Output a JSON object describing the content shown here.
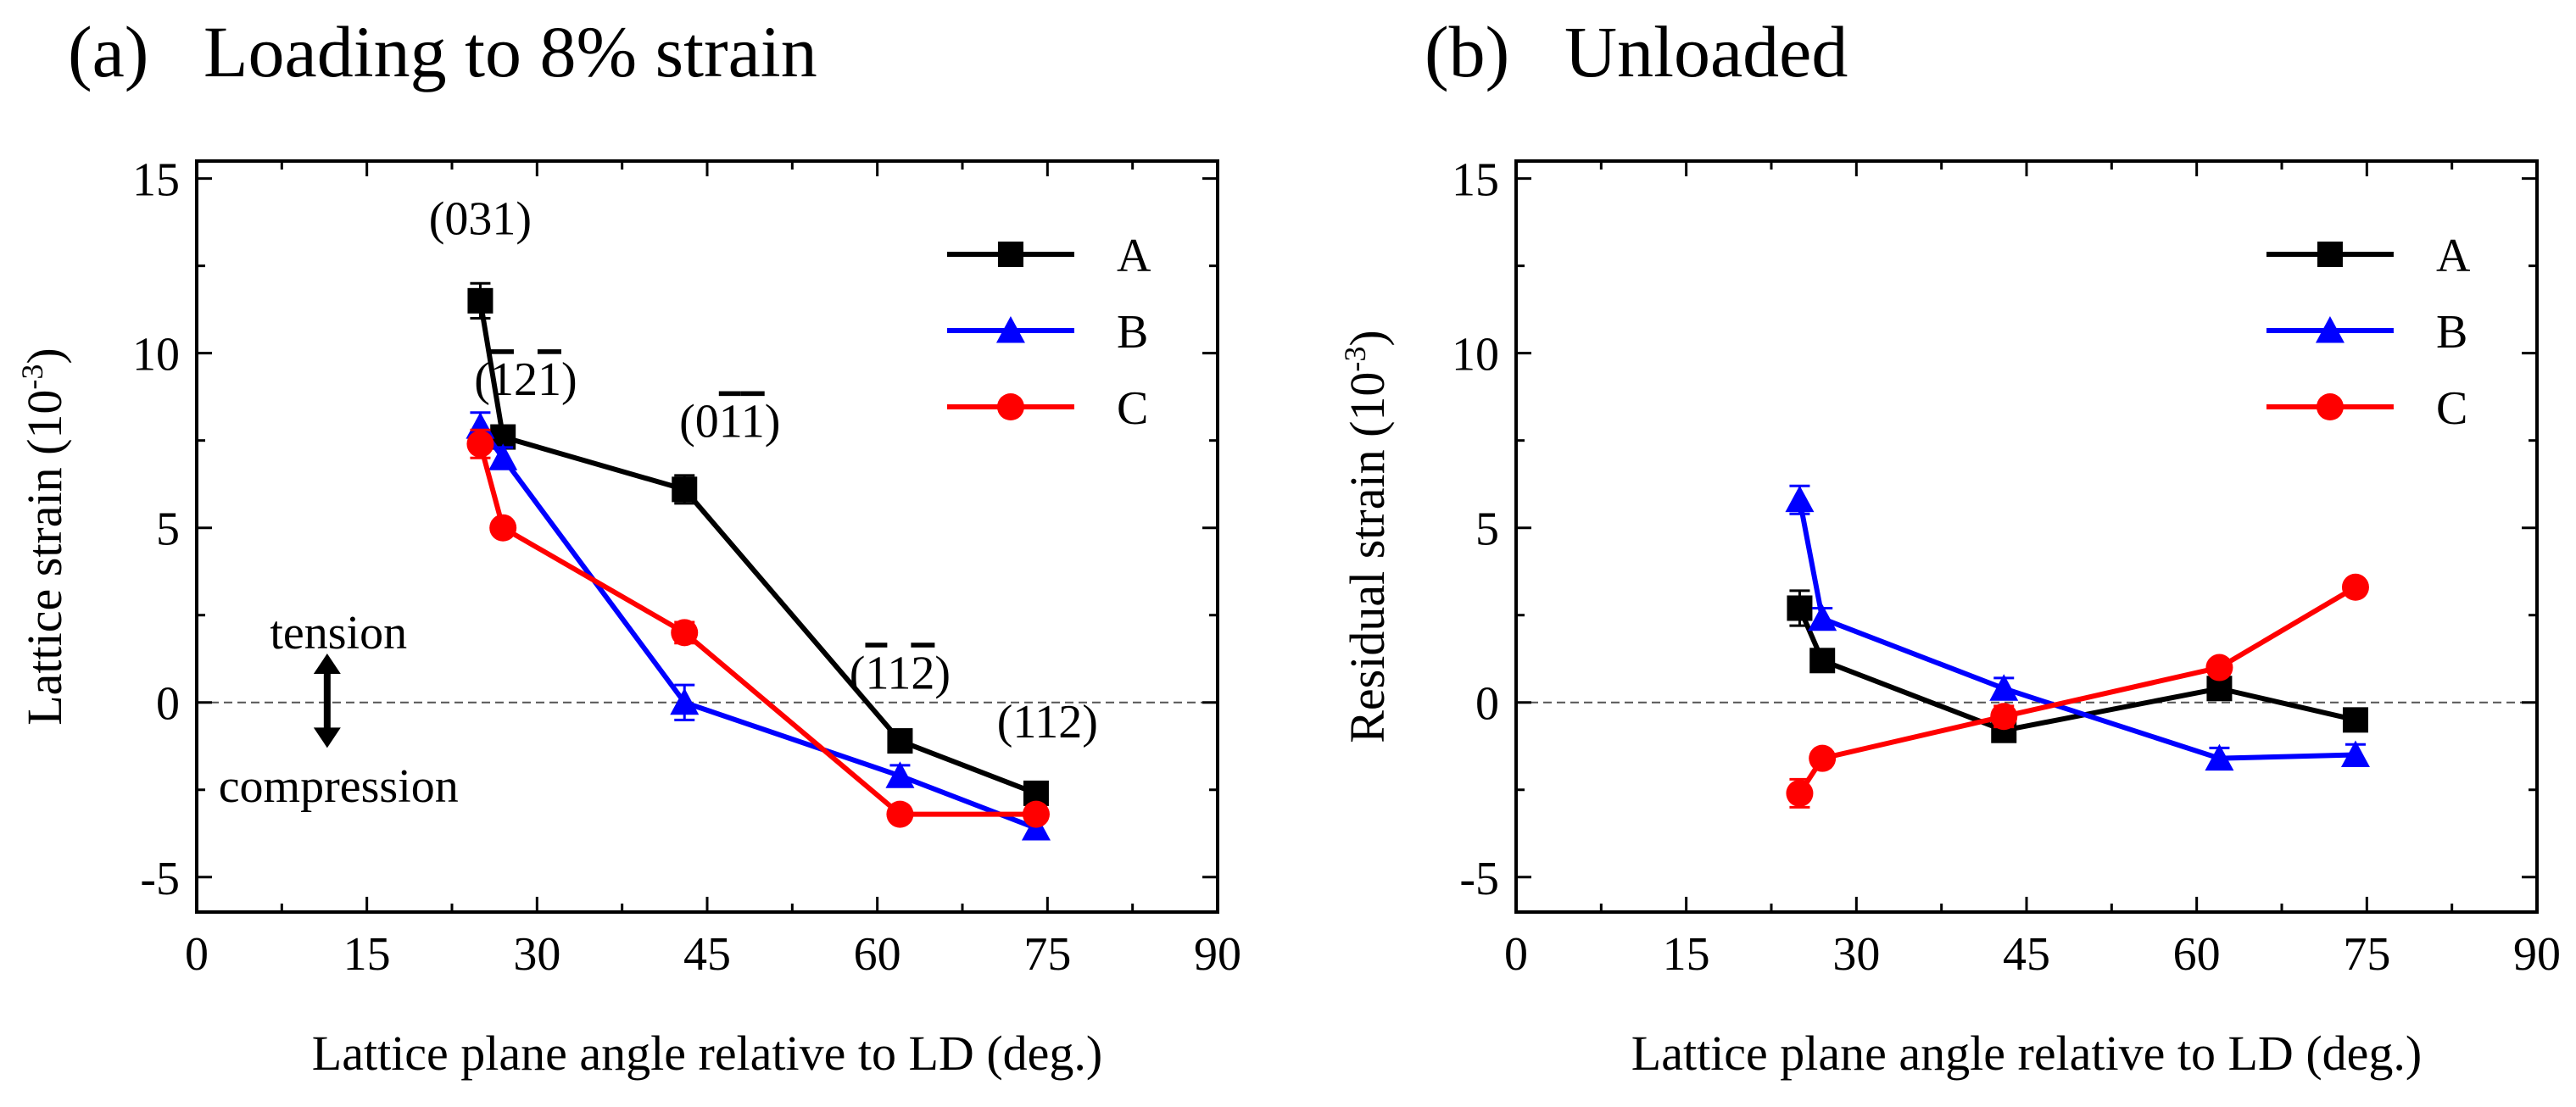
{
  "chart_data": [
    {
      "panel": "a",
      "type": "line",
      "panel_label": "(a)",
      "title": "Loading to 8% strain",
      "xlabel": "Lattice plane angle relative to LD (deg.)",
      "ylabel": "Lattice strain",
      "ylabel_unit": "10",
      "ylabel_unit_exp": "-3",
      "xlim": [
        0,
        90
      ],
      "ylim": [
        -6,
        15.5
      ],
      "xticks": [
        0,
        15,
        30,
        45,
        60,
        75,
        90
      ],
      "yticks": [
        -5,
        0,
        5,
        10,
        15
      ],
      "ytick_labels": [
        "-5",
        "0",
        "5",
        "10",
        "15"
      ],
      "reference_line": 0,
      "legend_position": "top-right",
      "series": [
        {
          "name": "A",
          "marker": "square",
          "color": "#000000",
          "x": [
            25,
            27,
            43,
            62,
            74
          ],
          "y": [
            11.5,
            7.6,
            6.1,
            -1.1,
            -2.6
          ],
          "err": [
            0.5,
            0.3,
            0.4,
            0.3,
            0.3
          ]
        },
        {
          "name": "B",
          "marker": "triangle",
          "color": "#0000ff",
          "x": [
            25,
            27,
            43,
            62,
            74
          ],
          "y": [
            7.9,
            7.0,
            0.0,
            -2.1,
            -3.6
          ],
          "err": [
            0.4,
            0.3,
            0.5,
            0.3,
            0.3
          ]
        },
        {
          "name": "C",
          "marker": "circle",
          "color": "#ff0000",
          "x": [
            25,
            27,
            43,
            62,
            74
          ],
          "y": [
            7.4,
            5.0,
            2.0,
            -3.2,
            -3.2
          ],
          "err": [
            0.4,
            0.2,
            0.3,
            0.2,
            0.2
          ]
        }
      ],
      "annotations": [
        {
          "label": "(031)",
          "at_x": 25,
          "at_y": 13.4
        },
        {
          "label": "(121)",
          "segments": [
            [
              "(",
              false
            ],
            [
              "1",
              true
            ],
            [
              "2",
              false
            ],
            [
              "1",
              true
            ],
            [
              ")",
              false
            ]
          ],
          "at_x": 29,
          "at_y": 8.8
        },
        {
          "label": "(011)",
          "segments": [
            [
              "(0",
              false
            ],
            [
              "1",
              true
            ],
            [
              "1",
              true
            ],
            [
              ")",
              false
            ]
          ],
          "at_x": 47,
          "at_y": 7.6
        },
        {
          "label": "(112)",
          "segments": [
            [
              "(",
              false
            ],
            [
              "1",
              true
            ],
            [
              "1",
              false
            ],
            [
              "2",
              true
            ],
            [
              ")",
              false
            ]
          ],
          "at_x": 62,
          "at_y": 0.4
        },
        {
          "label": "(112)",
          "at_x": 75,
          "at_y": -1.0
        }
      ],
      "arrow_labels": {
        "top": "tension",
        "bottom": "compression"
      }
    },
    {
      "panel": "b",
      "type": "line",
      "panel_label": "(b)",
      "title": "Unloaded",
      "xlabel": "Lattice plane angle relative to LD (deg.)",
      "ylabel": "Residual strain",
      "ylabel_unit": "10",
      "ylabel_unit_exp": "-3",
      "xlim": [
        0,
        90
      ],
      "ylim": [
        -6,
        15.5
      ],
      "xticks": [
        0,
        15,
        30,
        45,
        60,
        75,
        90
      ],
      "yticks": [
        -5,
        0,
        5,
        10,
        15
      ],
      "ytick_labels": [
        "-5",
        "0",
        "5",
        "10",
        "15"
      ],
      "reference_line": 0,
      "legend_position": "top-right",
      "series": [
        {
          "name": "A",
          "marker": "square",
          "color": "#000000",
          "x": [
            25,
            27,
            43,
            62,
            74
          ],
          "y": [
            2.7,
            1.2,
            -0.8,
            0.4,
            -0.5
          ],
          "err": [
            0.5,
            0.3,
            0.3,
            0.3,
            0.2
          ]
        },
        {
          "name": "B",
          "marker": "triangle",
          "color": "#0000ff",
          "x": [
            25,
            27,
            43,
            62,
            74
          ],
          "y": [
            5.8,
            2.4,
            0.4,
            -1.6,
            -1.5
          ],
          "err": [
            0.4,
            0.3,
            0.3,
            0.3,
            0.3
          ]
        },
        {
          "name": "C",
          "marker": "circle",
          "color": "#ff0000",
          "x": [
            25,
            27,
            43,
            62,
            74
          ],
          "y": [
            -2.6,
            -1.6,
            -0.4,
            1.0,
            3.3
          ],
          "err": [
            0.4,
            0.2,
            0.3,
            0.2,
            0.2
          ]
        }
      ]
    }
  ]
}
